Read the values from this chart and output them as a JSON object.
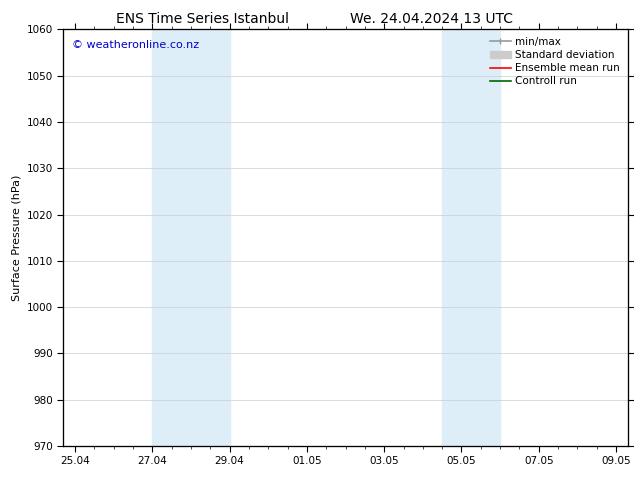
{
  "title_left": "ENS Time Series Istanbul",
  "title_right": "We. 24.04.2024 13 UTC",
  "ylabel": "Surface Pressure (hPa)",
  "ylim": [
    970,
    1060
  ],
  "yticks": [
    970,
    980,
    990,
    1000,
    1010,
    1020,
    1030,
    1040,
    1050,
    1060
  ],
  "xtick_labels": [
    "25.04",
    "27.04",
    "29.04",
    "01.05",
    "03.05",
    "05.05",
    "07.05",
    "09.05"
  ],
  "xtick_positions": [
    0,
    2,
    4,
    6,
    8,
    10,
    12,
    14
  ],
  "shaded_bands": [
    {
      "x_start": 2,
      "x_end": 4,
      "color": "#ddeef8"
    },
    {
      "x_start": 9.5,
      "x_end": 11,
      "color": "#ddeef8"
    }
  ],
  "watermark_text": "© weatheronline.co.nz",
  "watermark_color": "#0000cc",
  "watermark_fontsize": 8,
  "background_color": "#ffffff",
  "plot_bg_color": "#ffffff",
  "grid_color": "#cccccc",
  "title_fontsize": 10,
  "ylabel_fontsize": 8,
  "tick_fontsize": 7.5,
  "legend_fontsize": 7.5,
  "legend_labels": [
    "min/max",
    "Standard deviation",
    "Ensemble mean run",
    "Controll run"
  ],
  "legend_colors": [
    "#999999",
    "#cccccc",
    "#ff0000",
    "#006600"
  ]
}
